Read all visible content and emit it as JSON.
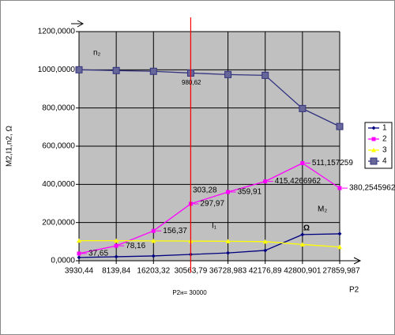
{
  "chart_data": {
    "type": "line",
    "y_label": "M2,I1,n2, Ω",
    "x_label": "P2",
    "categories": [
      "3930,44",
      "8139,84",
      "16203,32",
      "30563,79",
      "36728,983",
      "42176,89",
      "42800,901",
      "27859,987"
    ],
    "series": [
      {
        "name": "1",
        "color": "#000080",
        "values": [
          17,
          21,
          25,
          33,
          41,
          54,
          137,
          141
        ]
      },
      {
        "name": "2",
        "color": "#ff00ff",
        "values": [
          37.65,
          78.16,
          156.37,
          297.97,
          359.91,
          415.4266962,
          511.157259,
          380.2545962
        ],
        "value_labels": [
          "37,65",
          "78,16",
          "156,37",
          "297,97",
          "359,91",
          "415,4266962",
          "511,157259",
          "380,2545962"
        ]
      },
      {
        "name": "3",
        "color": "#ffff00",
        "values": [
          105,
          105,
          104,
          103,
          102,
          100,
          85,
          72
        ]
      },
      {
        "name": "4",
        "color": "#333380",
        "values": [
          1000,
          996,
          992,
          983,
          975,
          971,
          797,
          703
        ]
      }
    ],
    "ylim": [
      0,
      1200
    ],
    "yticks": [
      {
        "value": 0,
        "label": "0,0000"
      },
      {
        "value": 200,
        "label": "200,0000"
      },
      {
        "value": 400,
        "label": "400,0000"
      },
      {
        "value": 600,
        "label": "600,0000"
      },
      {
        "value": 800,
        "label": "800,0000"
      },
      {
        "value": 1000,
        "label": "1000,0000"
      },
      {
        "value": 1200,
        "label": "1200,0000"
      }
    ],
    "grid": true,
    "legend": "right",
    "annotations": [
      "n₂",
      "980,62",
      "303,28",
      "I₁",
      "M₂",
      "Ω",
      "P2н= 30000"
    ]
  }
}
